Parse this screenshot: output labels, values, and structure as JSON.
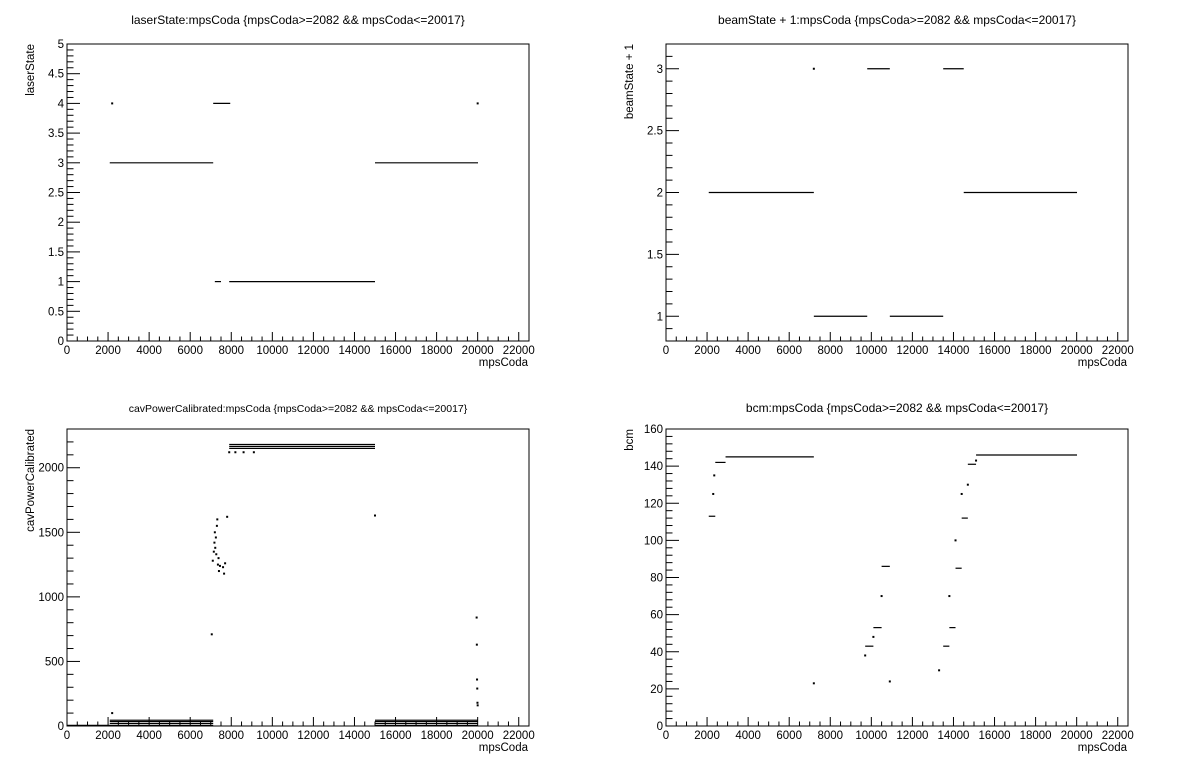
{
  "chart_data": [
    {
      "id": "laser",
      "type": "scatter",
      "title": "laserState:mpsCoda {mpsCoda>=2082 && mpsCoda<=20017}",
      "xlabel": "mpsCoda",
      "ylabel": "laserState",
      "xlim": [
        0,
        22500
      ],
      "ylim": [
        0,
        5
      ],
      "xticks": [
        0,
        2000,
        4000,
        6000,
        8000,
        10000,
        12000,
        14000,
        16000,
        18000,
        20000,
        22000
      ],
      "yticks": [
        0,
        0.5,
        1,
        1.5,
        2,
        2.5,
        3,
        3.5,
        4,
        4.5,
        5
      ],
      "grid": false,
      "segments": [
        {
          "x": [
            2082,
            7120
          ],
          "y": 3
        },
        {
          "x": [
            7120,
            7950
          ],
          "y": 4
        },
        {
          "x": [
            7200,
            7500
          ],
          "y": 1
        },
        {
          "x": [
            7900,
            15000
          ],
          "y": 1
        },
        {
          "x": [
            15000,
            20017
          ],
          "y": 3
        }
      ],
      "points": [
        {
          "x": 2200,
          "y": 4
        },
        {
          "x": 20000,
          "y": 4
        }
      ]
    },
    {
      "id": "beam",
      "type": "scatter",
      "title": "beamState + 1:mpsCoda {mpsCoda>=2082 && mpsCoda<=20017}",
      "xlabel": "mpsCoda",
      "ylabel": "beamState + 1",
      "xlim": [
        0,
        22500
      ],
      "ylim": [
        0.8,
        3.2
      ],
      "xticks": [
        0,
        2000,
        4000,
        6000,
        8000,
        10000,
        12000,
        14000,
        16000,
        18000,
        20000,
        22000
      ],
      "yticks": [
        1,
        1.5,
        2,
        2.5,
        3
      ],
      "grid": false,
      "segments": [
        {
          "x": [
            2082,
            7200
          ],
          "y": 2
        },
        {
          "x": [
            7200,
            9800
          ],
          "y": 1
        },
        {
          "x": [
            9800,
            10900
          ],
          "y": 3
        },
        {
          "x": [
            10900,
            13500
          ],
          "y": 1
        },
        {
          "x": [
            13500,
            14500
          ],
          "y": 3
        },
        {
          "x": [
            14500,
            20017
          ],
          "y": 2
        }
      ],
      "points": [
        {
          "x": 7200,
          "y": 3
        }
      ]
    },
    {
      "id": "cav",
      "type": "scatter",
      "title": "cavPowerCalibrated:mpsCoda {mpsCoda>=2082 && mpsCoda<=20017}",
      "xlabel": "mpsCoda",
      "ylabel": "cavPowerCalibrated",
      "xlim": [
        0,
        22500
      ],
      "ylim": [
        0,
        2300
      ],
      "xticks": [
        0,
        2000,
        4000,
        6000,
        8000,
        10000,
        12000,
        14000,
        16000,
        18000,
        20000,
        22000
      ],
      "yticks": [
        0,
        500,
        1000,
        1500,
        2000
      ],
      "grid": false,
      "segments": [
        {
          "x": [
            0,
            7120
          ],
          "y": 5
        },
        {
          "x": [
            2082,
            7120
          ],
          "y": 20
        },
        {
          "x": [
            2082,
            7120
          ],
          "y": 35
        },
        {
          "x": [
            2082,
            7120
          ],
          "y": 45
        },
        {
          "x": [
            7900,
            15000
          ],
          "y": 2150
        },
        {
          "x": [
            7900,
            15000
          ],
          "y": 2165
        },
        {
          "x": [
            7900,
            15000
          ],
          "y": 2180
        },
        {
          "x": [
            15000,
            20017
          ],
          "y": 5
        },
        {
          "x": [
            15000,
            20017
          ],
          "y": 20
        },
        {
          "x": [
            15000,
            20017
          ],
          "y": 35
        },
        {
          "x": [
            15000,
            20017
          ],
          "y": 45
        }
      ],
      "points": [
        {
          "x": 2200,
          "y": 100
        },
        {
          "x": 7050,
          "y": 710
        },
        {
          "x": 7100,
          "y": 1280
        },
        {
          "x": 7150,
          "y": 1350
        },
        {
          "x": 7180,
          "y": 1420
        },
        {
          "x": 7200,
          "y": 1500
        },
        {
          "x": 7220,
          "y": 1380
        },
        {
          "x": 7250,
          "y": 1460
        },
        {
          "x": 7270,
          "y": 1330
        },
        {
          "x": 7300,
          "y": 1550
        },
        {
          "x": 7320,
          "y": 1600
        },
        {
          "x": 7350,
          "y": 1250
        },
        {
          "x": 7380,
          "y": 1300
        },
        {
          "x": 7400,
          "y": 1200
        },
        {
          "x": 7450,
          "y": 1240
        },
        {
          "x": 7600,
          "y": 1230
        },
        {
          "x": 7650,
          "y": 1180
        },
        {
          "x": 7700,
          "y": 1260
        },
        {
          "x": 7800,
          "y": 1620
        },
        {
          "x": 7900,
          "y": 2120
        },
        {
          "x": 8200,
          "y": 2120
        },
        {
          "x": 8600,
          "y": 2120
        },
        {
          "x": 9100,
          "y": 2120
        },
        {
          "x": 15000,
          "y": 1630
        },
        {
          "x": 19950,
          "y": 840
        },
        {
          "x": 19960,
          "y": 630
        },
        {
          "x": 19970,
          "y": 360
        },
        {
          "x": 19980,
          "y": 290
        },
        {
          "x": 19990,
          "y": 180
        },
        {
          "x": 20000,
          "y": 160
        }
      ]
    },
    {
      "id": "bcm",
      "type": "scatter",
      "title": "bcm:mpsCoda {mpsCoda>=2082 && mpsCoda<=20017}",
      "xlabel": "mpsCoda",
      "ylabel": "bcm",
      "xlim": [
        0,
        22500
      ],
      "ylim": [
        0,
        160
      ],
      "xticks": [
        0,
        2000,
        4000,
        6000,
        8000,
        10000,
        12000,
        14000,
        16000,
        18000,
        20000,
        22000
      ],
      "yticks": [
        0,
        20,
        40,
        60,
        80,
        100,
        120,
        140,
        160
      ],
      "grid": false,
      "segments": [
        {
          "x": [
            2082,
            2400
          ],
          "y": 113
        },
        {
          "x": [
            2400,
            2900
          ],
          "y": 142
        },
        {
          "x": [
            2900,
            7200
          ],
          "y": 145
        },
        {
          "x": [
            9700,
            10100
          ],
          "y": 43
        },
        {
          "x": [
            10100,
            10500
          ],
          "y": 53
        },
        {
          "x": [
            10500,
            10900
          ],
          "y": 86
        },
        {
          "x": [
            13500,
            13800
          ],
          "y": 43
        },
        {
          "x": [
            13800,
            14100
          ],
          "y": 53
        },
        {
          "x": [
            14100,
            14400
          ],
          "y": 85
        },
        {
          "x": [
            14400,
            14700
          ],
          "y": 112
        },
        {
          "x": [
            14700,
            15100
          ],
          "y": 141
        },
        {
          "x": [
            15100,
            20017
          ],
          "y": 146
        }
      ],
      "points": [
        {
          "x": 2300,
          "y": 125
        },
        {
          "x": 2350,
          "y": 135
        },
        {
          "x": 7200,
          "y": 23
        },
        {
          "x": 9700,
          "y": 38
        },
        {
          "x": 10100,
          "y": 48
        },
        {
          "x": 10500,
          "y": 70
        },
        {
          "x": 10900,
          "y": 24
        },
        {
          "x": 13300,
          "y": 30
        },
        {
          "x": 13800,
          "y": 70
        },
        {
          "x": 14100,
          "y": 100
        },
        {
          "x": 14400,
          "y": 125
        },
        {
          "x": 14700,
          "y": 130
        },
        {
          "x": 15100,
          "y": 143
        }
      ]
    }
  ]
}
